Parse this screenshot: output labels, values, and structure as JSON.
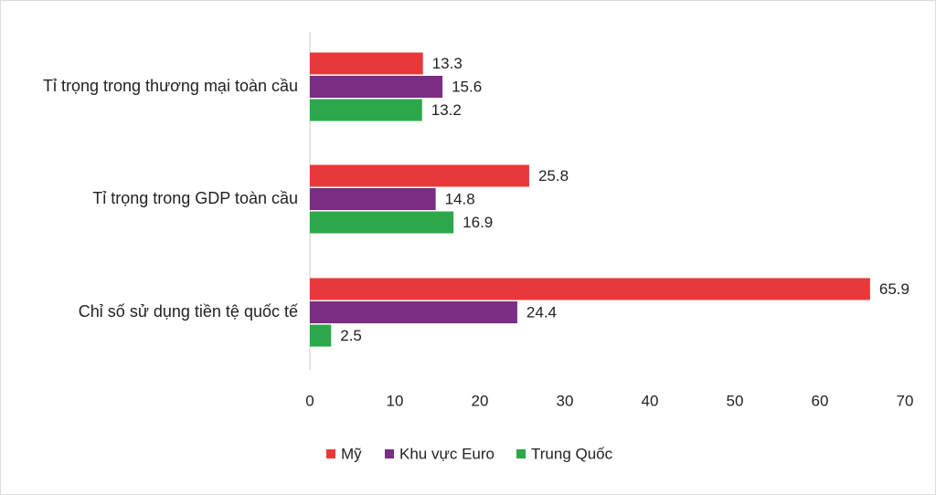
{
  "chart_data": {
    "type": "bar",
    "orientation": "horizontal",
    "categories": [
      "Tỉ trọng trong thương mại toàn cầu",
      "Tỉ trọng trong GDP toàn cầu",
      "Chỉ số sử dụng tiền tệ quốc tế"
    ],
    "series": [
      {
        "name": "Mỹ",
        "color": "#e8393a",
        "values": [
          13.3,
          25.8,
          65.9
        ]
      },
      {
        "name": "Khu vực Euro",
        "color": "#7b2d83",
        "values": [
          15.6,
          14.8,
          24.4
        ]
      },
      {
        "name": "Trung Quốc",
        "color": "#2ca84a",
        "values": [
          13.2,
          16.9,
          2.5
        ]
      }
    ],
    "xlim": [
      0,
      70
    ],
    "xticks": [
      0,
      10,
      20,
      30,
      40,
      50,
      60,
      70
    ],
    "grid": false,
    "legend": "bottom"
  }
}
